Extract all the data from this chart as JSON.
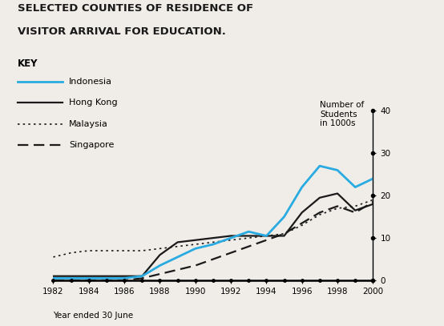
{
  "title_line1": "SELECTED COUNTIES OF RESIDENCE OF",
  "title_line2": "VISITOR ARRIVAL FOR EDUCATION.",
  "ylabel": "Number of\nStudents\nin 1000s",
  "xlabel": "Year ended 30 June",
  "years": [
    1982,
    1983,
    1984,
    1985,
    1986,
    1987,
    1988,
    1989,
    1990,
    1991,
    1992,
    1993,
    1994,
    1995,
    1996,
    1997,
    1998,
    1999,
    2000
  ],
  "indonesia": [
    0.5,
    0.5,
    0.5,
    0.5,
    0.5,
    1.0,
    3.5,
    5.5,
    7.5,
    8.5,
    10.0,
    11.5,
    10.5,
    15.0,
    22.0,
    27.0,
    26.0,
    22.0,
    24.0
  ],
  "hong_kong": [
    1.0,
    1.0,
    1.0,
    1.0,
    1.0,
    1.0,
    6.0,
    9.0,
    9.5,
    10.0,
    10.5,
    10.5,
    10.5,
    10.5,
    16.0,
    19.5,
    20.5,
    16.5,
    18.0
  ],
  "malaysia": [
    5.5,
    6.5,
    7.0,
    7.0,
    7.0,
    7.0,
    7.5,
    8.0,
    8.5,
    9.0,
    9.5,
    10.0,
    10.5,
    11.0,
    13.0,
    15.5,
    17.0,
    17.5,
    19.0
  ],
  "singapore": [
    0.0,
    0.0,
    0.0,
    0.0,
    0.0,
    0.5,
    1.5,
    2.5,
    3.5,
    5.0,
    6.5,
    8.0,
    9.5,
    11.0,
    13.5,
    16.0,
    17.5,
    16.0,
    18.5
  ],
  "indonesia_color": "#29abe2",
  "hong_kong_color": "#1a1a1a",
  "malaysia_color": "#1a1a1a",
  "singapore_color": "#1a1a1a",
  "ylim": [
    0,
    40
  ],
  "yticks": [
    0,
    10,
    20,
    30,
    40
  ],
  "xticks": [
    1982,
    1984,
    1986,
    1988,
    1990,
    1992,
    1994,
    1996,
    1998,
    2000
  ],
  "all_years": [
    1982,
    1983,
    1984,
    1985,
    1986,
    1987,
    1988,
    1989,
    1990,
    1991,
    1992,
    1993,
    1994,
    1995,
    1996,
    1997,
    1998,
    1999,
    2000
  ],
  "bg_color": "#f0ede8"
}
